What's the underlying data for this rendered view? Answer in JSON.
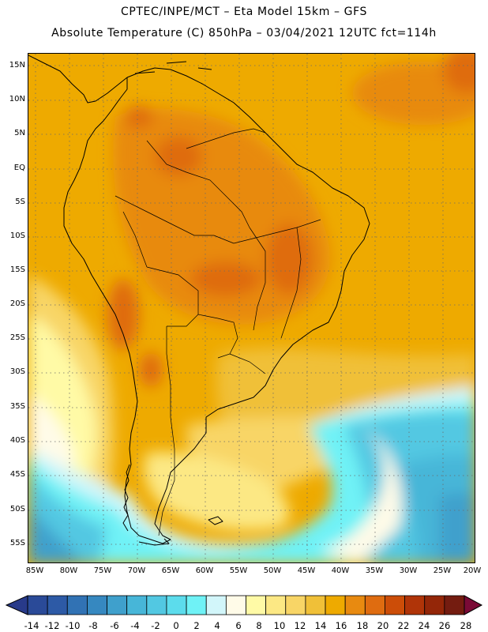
{
  "header": {
    "line1": "CPTEC/INPE/MCT –  Eta Model 15km – GFS",
    "line2": "Absolute Temperature (C) 850hPa – 03/04/2021 12UTC fct=114h"
  },
  "map": {
    "lat_labels": [
      "15N",
      "10N",
      "5N",
      "EQ",
      "5S",
      "10S",
      "15S",
      "20S",
      "25S",
      "30S",
      "35S",
      "40S",
      "45S",
      "50S",
      "55S"
    ],
    "lon_labels": [
      "85W",
      "80W",
      "75W",
      "70W",
      "65W",
      "60W",
      "55W",
      "50W",
      "45W",
      "40W",
      "35W",
      "30W",
      "25W",
      "20W"
    ],
    "lat_range": [
      15,
      -58
    ],
    "lon_range": [
      -86,
      -20
    ],
    "gridlines": "dotted"
  },
  "colorbar": {
    "labels": [
      "-14",
      "-12",
      "-10",
      "-8",
      "-6",
      "-4",
      "-2",
      "0",
      "2",
      "4",
      "6",
      "8",
      "10",
      "12",
      "14",
      "16",
      "18",
      "20",
      "22",
      "24",
      "26",
      "28"
    ],
    "colors": [
      "#2a4a98",
      "#2d5aa6",
      "#3172b4",
      "#3688c0",
      "#3fa0cc",
      "#47b6d8",
      "#52c8e2",
      "#5cdcec",
      "#6ff2f6",
      "#d2f6fa",
      "#fffbe8",
      "#fffaa6",
      "#fce884",
      "#f8d566",
      "#f0c038",
      "#eeaa00",
      "#e88a10",
      "#df6c10",
      "#cc4d08",
      "#b03408",
      "#942608",
      "#741c10"
    ],
    "arrow_left": "#283a8a",
    "arrow_right": "#7a0a36"
  }
}
